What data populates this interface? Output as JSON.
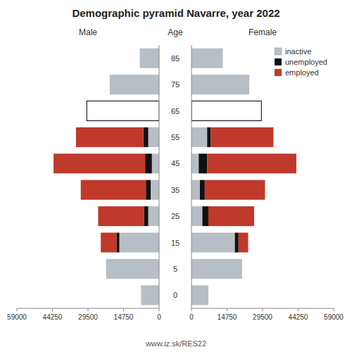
{
  "chart_data": [
    {
      "type": "bar",
      "orientation": "horizontal",
      "stacked": true,
      "title": "Demographic pyramid Navarre, year 2022",
      "subtitle": "Male",
      "categories": [
        "0",
        "5",
        "15",
        "25",
        "35",
        "45",
        "55",
        "65",
        "75",
        "85"
      ],
      "series": [
        {
          "name": "inactive",
          "color": "#b8bec5",
          "colors": [
            "#b8bec5",
            "#b8bec5",
            "#b8bec5",
            "#b8bec5",
            "#b8bec5",
            "#b8bec5",
            "#b8bec5",
            "#ffffff",
            "#b8bec5",
            "#b8bec5"
          ],
          "values": [
            7500,
            22000,
            16500,
            4500,
            3500,
            3000,
            4500,
            30000,
            20500,
            8000
          ]
        },
        {
          "name": "unemployed",
          "color": "#111111",
          "values": [
            0,
            0,
            1200,
            1800,
            2000,
            2800,
            2000,
            0,
            0,
            0
          ]
        },
        {
          "name": "employed",
          "color": "#c0392b",
          "values": [
            0,
            0,
            6500,
            19000,
            27000,
            38000,
            28000,
            0,
            0,
            0
          ]
        }
      ],
      "xlim": [
        59000,
        0
      ],
      "xticks": [
        59000,
        44250,
        29500,
        14750,
        0
      ],
      "grid": false,
      "tick_labels": "x"
    },
    {
      "type": "bar",
      "orientation": "horizontal",
      "stacked": true,
      "subtitle": "Female",
      "ylabel": "Age",
      "categories": [
        "0",
        "5",
        "15",
        "25",
        "35",
        "45",
        "55",
        "65",
        "75",
        "85"
      ],
      "series": [
        {
          "name": "inactive",
          "color": "#b8bec5",
          "colors": [
            "#b8bec5",
            "#b8bec5",
            "#b8bec5",
            "#b8bec5",
            "#b8bec5",
            "#b8bec5",
            "#b8bec5",
            "#ffffff",
            "#b8bec5",
            "#b8bec5"
          ],
          "values": [
            7000,
            21000,
            18000,
            4500,
            3500,
            3000,
            6500,
            29000,
            24000,
            13000
          ]
        },
        {
          "name": "unemployed",
          "color": "#111111",
          "values": [
            0,
            0,
            1500,
            2500,
            2000,
            3500,
            1500,
            0,
            0,
            0
          ]
        },
        {
          "name": "employed",
          "color": "#c0392b",
          "values": [
            0,
            0,
            4000,
            19000,
            25000,
            37000,
            26000,
            0,
            0,
            0
          ]
        }
      ],
      "xlim": [
        0,
        59000
      ],
      "xticks": [
        0,
        14750,
        29500,
        44250,
        59000
      ],
      "grid": false,
      "legend": "upper right",
      "annotations": [
        "www.iz.sk/RES22"
      ]
    }
  ]
}
